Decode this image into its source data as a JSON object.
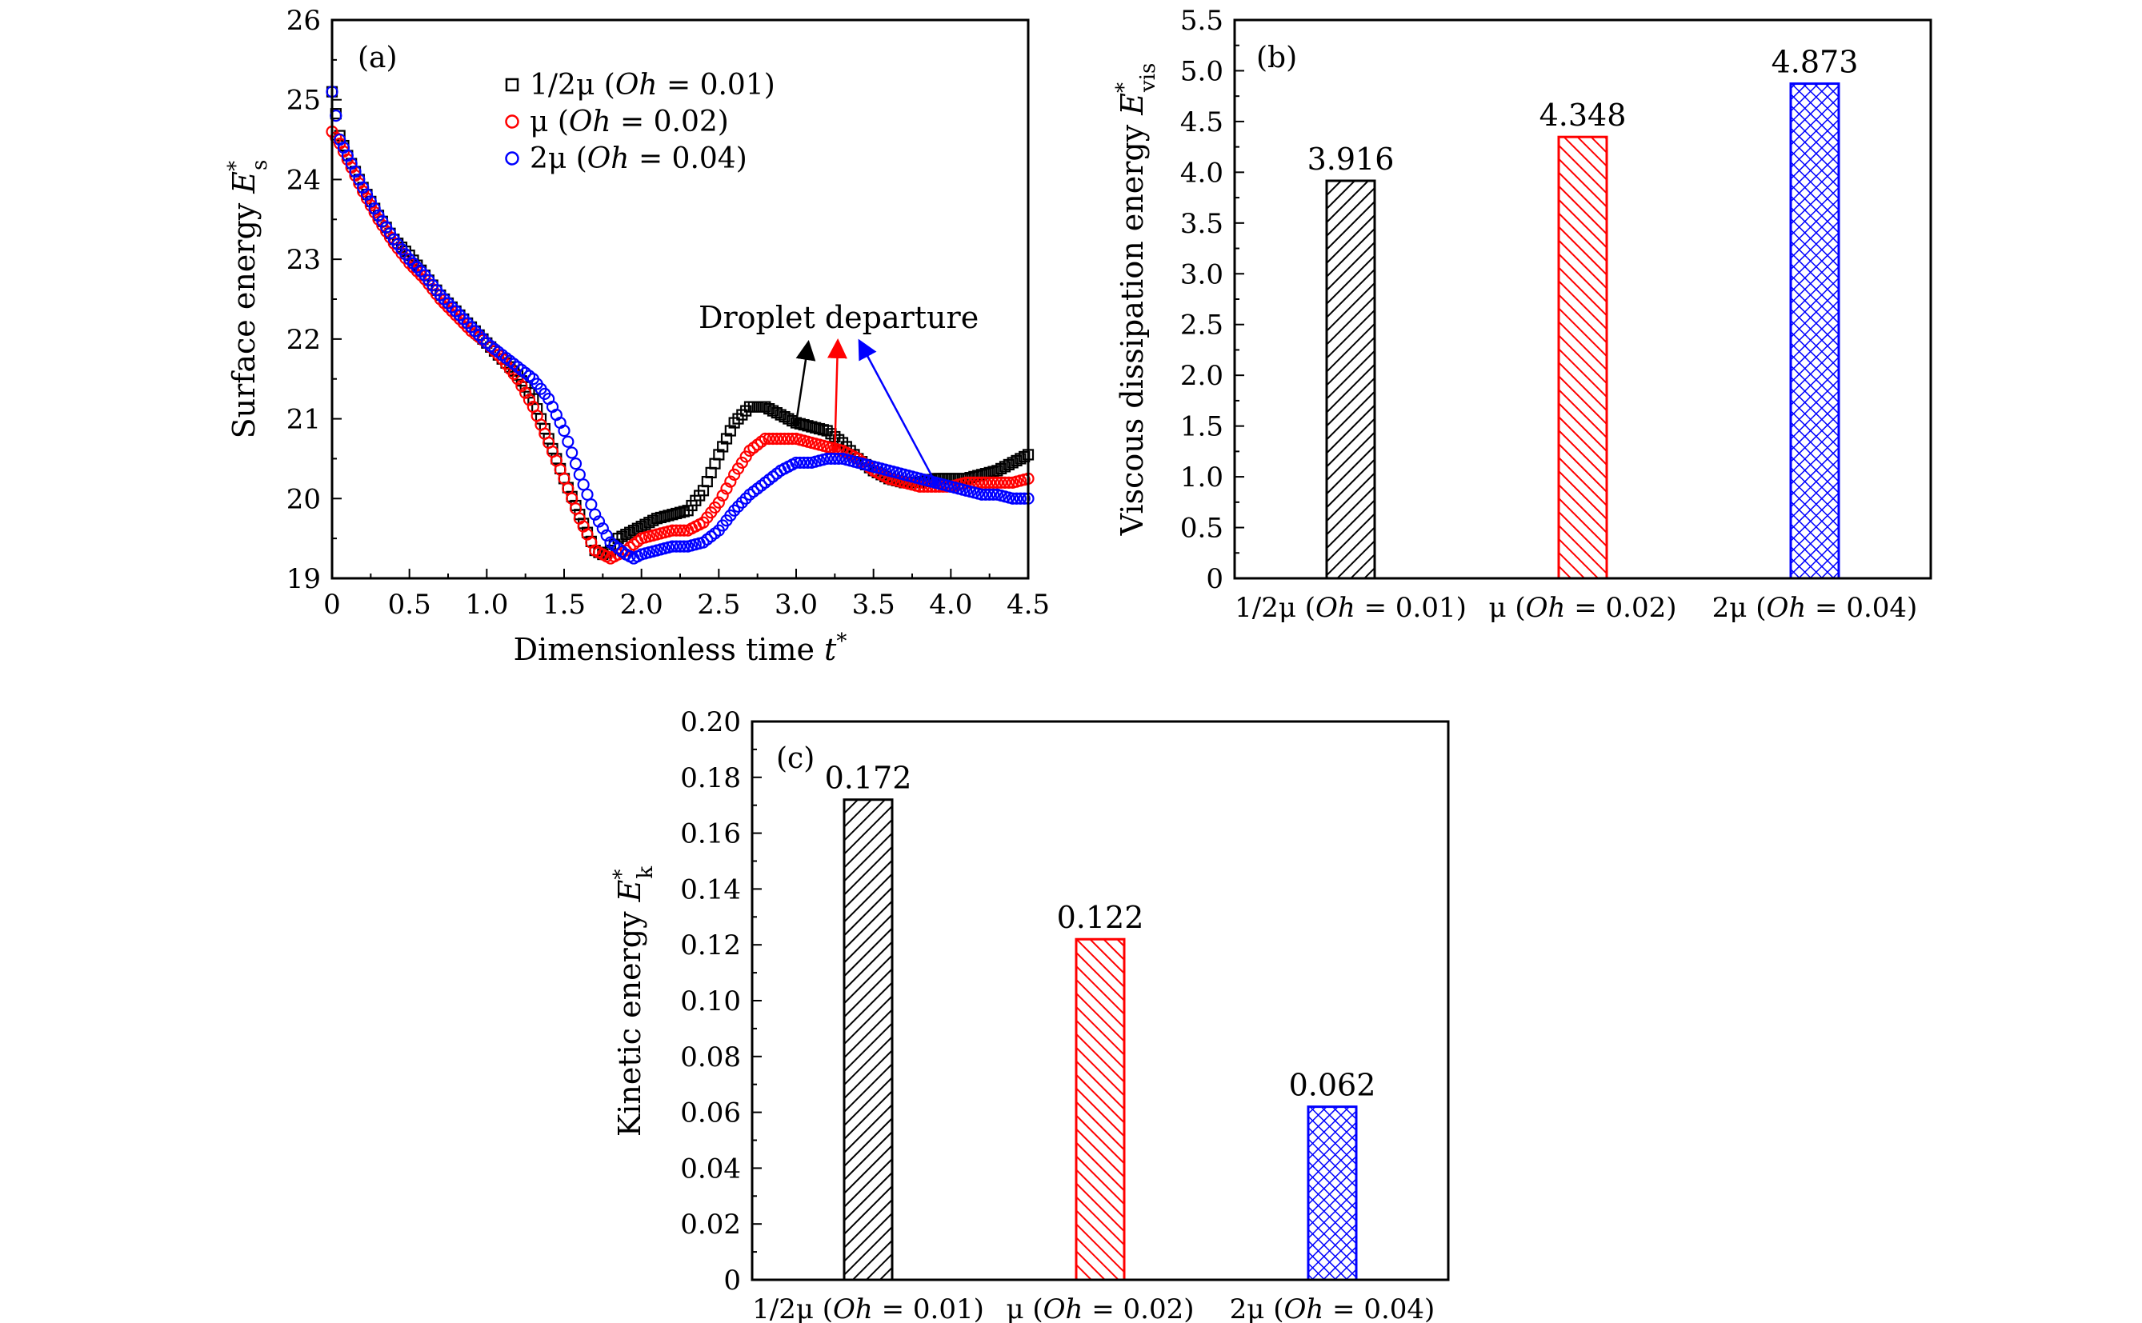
{
  "figure": {
    "panel_a_label": "(a)",
    "panel_b_label": "(b)",
    "panel_c_label": "(c)"
  },
  "chart_data": [
    {
      "panel": "(a)",
      "type": "scatter",
      "title": "",
      "xlabel": "Dimensionless time t*",
      "ylabel": "Surface energy Es*",
      "xlim": [
        0,
        4.5
      ],
      "ylim": [
        19,
        26
      ],
      "xticks": [
        "0",
        "0.5",
        "1.0",
        "1.5",
        "2.0",
        "2.5",
        "3.0",
        "3.5",
        "4.0",
        "4.5"
      ],
      "yticks": [
        "19",
        "20",
        "21",
        "22",
        "23",
        "24",
        "25",
        "26"
      ],
      "legend_position": "top-center",
      "annotation": "Droplet departure",
      "departure_times": [
        3.0,
        3.25,
        3.9
      ],
      "series": [
        {
          "name": "1/2μ (Oh = 0.01)",
          "marker": "square",
          "color": "#000000",
          "x": [
            0.0,
            0.05,
            0.1,
            0.2,
            0.3,
            0.4,
            0.5,
            0.6,
            0.7,
            0.8,
            0.9,
            1.0,
            1.1,
            1.2,
            1.3,
            1.4,
            1.5,
            1.6,
            1.7,
            1.75,
            1.8,
            1.85,
            1.9,
            2.0,
            2.1,
            2.2,
            2.3,
            2.4,
            2.5,
            2.6,
            2.7,
            2.8,
            2.9,
            3.0,
            3.1,
            3.2,
            3.3,
            3.4,
            3.5,
            3.6,
            3.7,
            3.8,
            3.9,
            4.0,
            4.1,
            4.2,
            4.3,
            4.4,
            4.5
          ],
          "y": [
            25.1,
            24.55,
            24.3,
            23.9,
            23.55,
            23.25,
            23.05,
            22.8,
            22.55,
            22.35,
            22.15,
            21.95,
            21.75,
            21.55,
            21.25,
            20.75,
            20.25,
            19.8,
            19.35,
            19.3,
            19.35,
            19.5,
            19.55,
            19.65,
            19.75,
            19.8,
            19.85,
            20.1,
            20.55,
            20.95,
            21.15,
            21.15,
            21.05,
            20.95,
            20.9,
            20.85,
            20.7,
            20.5,
            20.35,
            20.25,
            20.2,
            20.2,
            20.25,
            20.25,
            20.25,
            20.3,
            20.35,
            20.45,
            20.55
          ]
        },
        {
          "name": "μ (Oh = 0.02)",
          "marker": "circle",
          "color": "#ff0000",
          "x": [
            0.0,
            0.05,
            0.1,
            0.2,
            0.3,
            0.4,
            0.5,
            0.6,
            0.7,
            0.8,
            0.9,
            1.0,
            1.1,
            1.2,
            1.3,
            1.4,
            1.5,
            1.6,
            1.7,
            1.8,
            1.85,
            1.9,
            2.0,
            2.1,
            2.2,
            2.3,
            2.4,
            2.5,
            2.6,
            2.7,
            2.8,
            2.9,
            3.0,
            3.1,
            3.2,
            3.3,
            3.4,
            3.5,
            3.6,
            3.7,
            3.8,
            3.9,
            4.0,
            4.1,
            4.2,
            4.3,
            4.4,
            4.5
          ],
          "y": [
            24.6,
            24.45,
            24.25,
            23.85,
            23.5,
            23.2,
            22.95,
            22.75,
            22.5,
            22.3,
            22.1,
            21.95,
            21.75,
            21.5,
            21.15,
            20.7,
            20.25,
            19.75,
            19.35,
            19.25,
            19.3,
            19.35,
            19.5,
            19.55,
            19.6,
            19.6,
            19.7,
            19.95,
            20.3,
            20.6,
            20.75,
            20.75,
            20.75,
            20.7,
            20.65,
            20.6,
            20.5,
            20.35,
            20.25,
            20.2,
            20.15,
            20.15,
            20.15,
            20.2,
            20.2,
            20.2,
            20.2,
            20.25
          ]
        },
        {
          "name": "2μ (Oh = 0.04)",
          "marker": "circle",
          "color": "#0000ff",
          "x": [
            0.0,
            0.05,
            0.1,
            0.2,
            0.3,
            0.4,
            0.5,
            0.6,
            0.7,
            0.8,
            0.9,
            1.0,
            1.1,
            1.2,
            1.3,
            1.4,
            1.5,
            1.6,
            1.7,
            1.8,
            1.9,
            1.95,
            2.0,
            2.1,
            2.2,
            2.3,
            2.4,
            2.5,
            2.6,
            2.7,
            2.8,
            2.9,
            3.0,
            3.1,
            3.2,
            3.3,
            3.4,
            3.5,
            3.6,
            3.7,
            3.8,
            3.9,
            4.0,
            4.1,
            4.2,
            4.3,
            4.4,
            4.5
          ],
          "y": [
            25.1,
            24.5,
            24.3,
            23.9,
            23.55,
            23.25,
            23.0,
            22.8,
            22.55,
            22.35,
            22.15,
            21.95,
            21.8,
            21.65,
            21.5,
            21.25,
            20.85,
            20.3,
            19.8,
            19.45,
            19.3,
            19.25,
            19.3,
            19.35,
            19.4,
            19.4,
            19.45,
            19.6,
            19.85,
            20.05,
            20.2,
            20.35,
            20.45,
            20.45,
            20.5,
            20.5,
            20.45,
            20.4,
            20.35,
            20.3,
            20.25,
            20.2,
            20.15,
            20.1,
            20.05,
            20.05,
            20.0,
            20.0
          ]
        }
      ]
    },
    {
      "panel": "(b)",
      "type": "bar",
      "title": "",
      "xlabel": "",
      "ylabel": "Viscous dissipation energy Evis*",
      "ylim": [
        0,
        5.5
      ],
      "yticks": [
        "0",
        "0.5",
        "1.0",
        "1.5",
        "2.0",
        "2.5",
        "3.0",
        "3.5",
        "4.0",
        "4.5",
        "5.0",
        "5.5"
      ],
      "categories": [
        "1/2μ (Oh = 0.01)",
        "μ (Oh = 0.02)",
        "2μ (Oh = 0.04)"
      ],
      "values": [
        3.916,
        4.348,
        4.873
      ],
      "value_labels": [
        "3.916",
        "4.348",
        "4.873"
      ],
      "colors": [
        "#000000",
        "#ff0000",
        "#0000ff"
      ]
    },
    {
      "panel": "(c)",
      "type": "bar",
      "title": "",
      "xlabel": "",
      "ylabel": "Kinetic energy Ek*",
      "ylim": [
        0,
        0.2
      ],
      "yticks": [
        "0",
        "0.02",
        "0.04",
        "0.06",
        "0.08",
        "0.10",
        "0.12",
        "0.14",
        "0.16",
        "0.18",
        "0.20"
      ],
      "categories": [
        "1/2μ (Oh = 0.01)",
        "μ (Oh = 0.02)",
        "2μ (Oh = 0.04)"
      ],
      "values": [
        0.172,
        0.122,
        0.062
      ],
      "value_labels": [
        "0.172",
        "0.122",
        "0.062"
      ],
      "colors": [
        "#000000",
        "#ff0000",
        "#0000ff"
      ]
    }
  ]
}
